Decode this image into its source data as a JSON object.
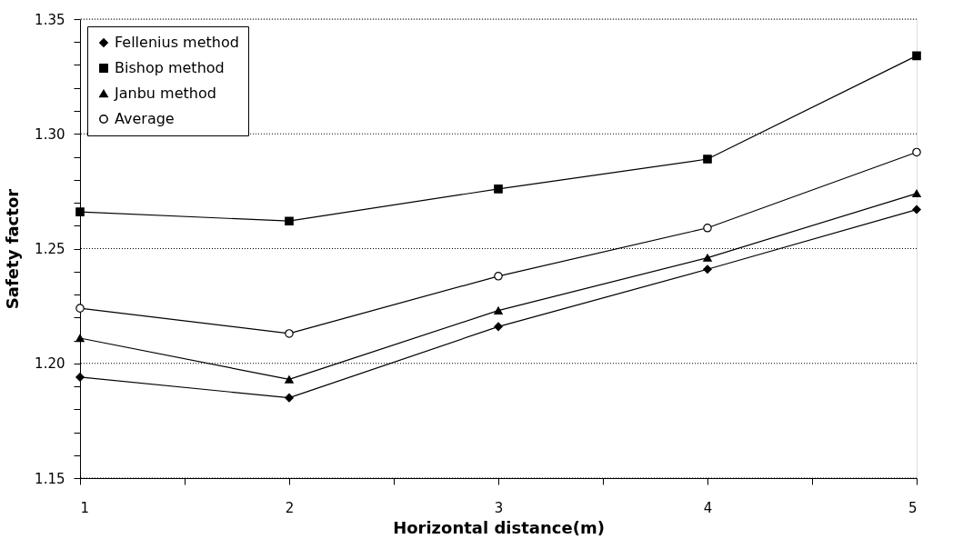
{
  "chart_data": {
    "type": "line",
    "xlabel": "Horizontal distance(m)",
    "ylabel": "Safety factor",
    "x": [
      1,
      2,
      3,
      4,
      5
    ],
    "series": [
      {
        "name": "Fellenius method",
        "color": "#000000",
        "marker": "diamond",
        "values": [
          1.194,
          1.185,
          1.216,
          1.241,
          1.267
        ]
      },
      {
        "name": "Bishop method",
        "color": "#000000",
        "marker": "square",
        "values": [
          1.266,
          1.262,
          1.276,
          1.289,
          1.334
        ]
      },
      {
        "name": "Janbu method",
        "color": "#000000",
        "marker": "triangle",
        "values": [
          1.211,
          1.193,
          1.223,
          1.246,
          1.274
        ]
      },
      {
        "name": "Average",
        "color": "#000000",
        "marker": "circle",
        "values": [
          1.224,
          1.213,
          1.238,
          1.259,
          1.292
        ]
      }
    ],
    "xlim": [
      1,
      5
    ],
    "xticks": [
      1,
      {
        "value": 1.5,
        "label": null
      },
      2,
      {
        "value": 2.5,
        "label": null
      },
      3,
      {
        "value": 3.5,
        "label": null
      },
      4,
      {
        "value": 4.5,
        "label": null
      },
      5
    ],
    "ylim": [
      1.15,
      1.35
    ],
    "yticks": [
      "1.15",
      {
        "value": 1.16,
        "label": null
      },
      {
        "value": 1.17,
        "label": null
      },
      {
        "value": 1.18,
        "label": null
      },
      {
        "value": 1.19,
        "label": null
      },
      {
        "value": 1.2,
        "label": "1.20"
      },
      {
        "value": 1.21,
        "label": null
      },
      {
        "value": 1.22,
        "label": null
      },
      {
        "value": 1.23,
        "label": null
      },
      {
        "value": 1.24,
        "label": null
      },
      {
        "value": 1.25,
        "label": "1.25"
      },
      {
        "value": 1.26,
        "label": null
      },
      {
        "value": 1.27,
        "label": null
      },
      {
        "value": 1.28,
        "label": null
      },
      {
        "value": 1.29,
        "label": null
      },
      {
        "value": 1.3,
        "label": "1.30"
      },
      {
        "value": 1.31,
        "label": null
      },
      {
        "value": 1.32,
        "label": null
      },
      {
        "value": 1.33,
        "label": null
      },
      {
        "value": 1.34,
        "label": null
      },
      {
        "value": 1.35,
        "label": "1.35"
      }
    ],
    "grid": "y",
    "legend": "top left",
    "line_style": "solid"
  }
}
